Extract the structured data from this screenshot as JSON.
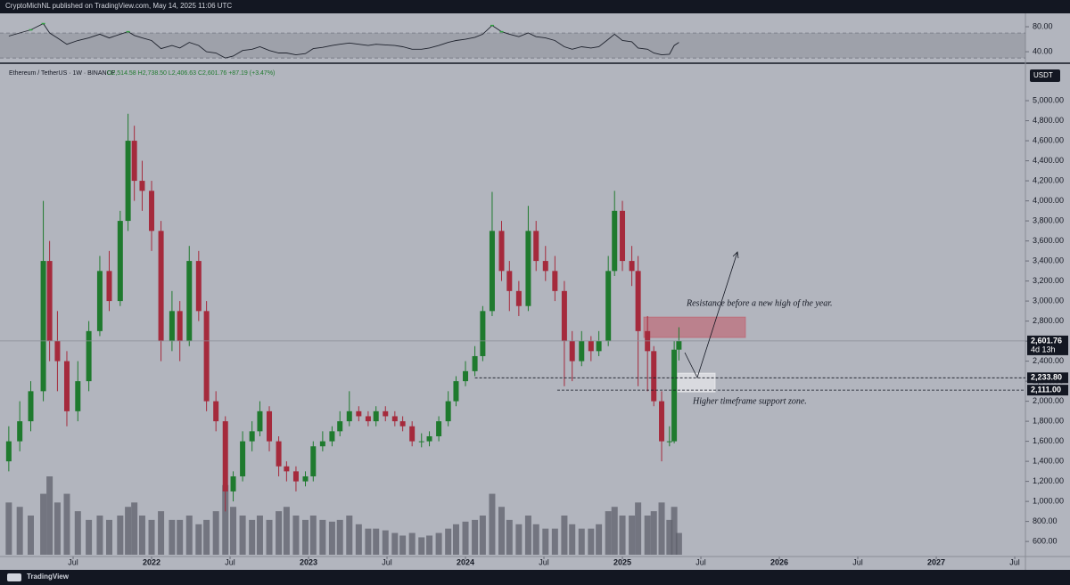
{
  "header": {
    "publisher": "CryptoMichNL published on TradingView.com, May 14, 2025 11:06 UTC",
    "brand": "TradingView"
  },
  "chart_data": {
    "type": "candlestick",
    "legend": {
      "symbol": "Ethereum / TetherUS · 1W · BINANCE",
      "ohlc": "O2,514.58 H2,738.50 L2,406.63 C2,601.76 +87.19 (+3.47%)"
    },
    "currency": "USDT",
    "up_color": "#1f7a2e",
    "down_color": "#a52a3c",
    "volume_color": "#5d606b",
    "xlim": [
      2021.034,
      2027.568
    ],
    "xticks": [
      {
        "value": 2021.5,
        "label": "Jul"
      },
      2022,
      {
        "value": 2022.5,
        "label": "Jul"
      },
      2023,
      {
        "value": 2023.5,
        "label": "Jul"
      },
      2024,
      {
        "value": 2024.5,
        "label": "Jul"
      },
      2025,
      {
        "value": 2025.5,
        "label": "Jul"
      },
      2026,
      {
        "value": 2026.5,
        "label": "Jul"
      },
      2027,
      {
        "value": 2027.5,
        "label": "Jul"
      }
    ],
    "ylim": [
      450,
      5365
    ],
    "yticks": [
      {
        "value": 600,
        "label": "600.00"
      },
      {
        "value": 800,
        "label": "800.00"
      },
      {
        "value": 1000,
        "label": "1,000.00"
      },
      {
        "value": 1200,
        "label": "1,200.00"
      },
      {
        "value": 1400,
        "label": "1,400.00"
      },
      {
        "value": 1600,
        "label": "1,600.00"
      },
      {
        "value": 1800,
        "label": "1,800.00"
      },
      {
        "value": 2000,
        "label": "2,000.00"
      },
      {
        "value": 2200,
        "label": "2,200.00"
      },
      {
        "value": 2400,
        "label": "2,400.00"
      },
      {
        "value": 2600,
        "label": "2,600.00"
      },
      {
        "value": 2800,
        "label": "2,800.00"
      },
      {
        "value": 3000,
        "label": "3,000.00"
      },
      {
        "value": 3200,
        "label": "3,200.00"
      },
      {
        "value": 3400,
        "label": "3,400.00"
      },
      {
        "value": 3600,
        "label": "3,600.00"
      },
      {
        "value": 3800,
        "label": "3,800.00"
      },
      {
        "value": 4000,
        "label": "4,000.00"
      },
      {
        "value": 4200,
        "label": "4,200.00"
      },
      {
        "value": 4400,
        "label": "4,400.00"
      },
      {
        "value": 4600,
        "label": "4,600.00"
      },
      {
        "value": 4800,
        "label": "4,800.00"
      },
      {
        "value": 5000,
        "label": "5,000.00"
      }
    ],
    "candles": {
      "x": [
        2021.09,
        2021.16,
        2021.23,
        2021.31,
        2021.35,
        2021.4,
        2021.46,
        2021.53,
        2021.6,
        2021.67,
        2021.73,
        2021.8,
        2021.85,
        2021.89,
        2021.94,
        2022.0,
        2022.06,
        2022.13,
        2022.18,
        2022.24,
        2022.3,
        2022.35,
        2022.41,
        2022.47,
        2022.52,
        2022.58,
        2022.64,
        2022.69,
        2022.75,
        2022.81,
        2022.86,
        2022.92,
        2022.98,
        2023.03,
        2023.09,
        2023.15,
        2023.2,
        2023.26,
        2023.32,
        2023.38,
        2023.43,
        2023.49,
        2023.55,
        2023.6,
        2023.66,
        2023.72,
        2023.77,
        2023.83,
        2023.89,
        2023.94,
        2024.0,
        2024.06,
        2024.11,
        2024.17,
        2024.23,
        2024.28,
        2024.34,
        2024.4,
        2024.45,
        2024.51,
        2024.57,
        2024.63,
        2024.68,
        2024.74,
        2024.8,
        2024.85,
        2024.91,
        2024.95,
        2025.0,
        2025.06,
        2025.1,
        2025.16,
        2025.2,
        2025.25,
        2025.3,
        2025.33,
        2025.36
      ],
      "open": [
        1400,
        1600,
        1800,
        2100,
        3400,
        2600,
        2400,
        1900,
        2200,
        2700,
        3300,
        3000,
        3800,
        4600,
        4200,
        4100,
        3700,
        2600,
        2900,
        2600,
        3400,
        2900,
        2000,
        1800,
        1100,
        1250,
        1600,
        1700,
        1900,
        1600,
        1350,
        1300,
        1200,
        1250,
        1550,
        1600,
        1700,
        1800,
        1900,
        1850,
        1800,
        1900,
        1850,
        1800,
        1750,
        1600,
        1600,
        1650,
        1800,
        2000,
        2200,
        2300,
        2450,
        2900,
        3700,
        3300,
        3100,
        2950,
        3700,
        3400,
        3300,
        3100,
        2600,
        2400,
        2600,
        2500,
        2600,
        3300,
        3900,
        3400,
        3300,
        2700,
        2500,
        2000,
        1600,
        1600,
        2514.58
      ],
      "high": [
        1750,
        2000,
        2200,
        4000,
        3600,
        2900,
        2500,
        2400,
        2800,
        3450,
        3500,
        3900,
        4870,
        4750,
        4400,
        4200,
        3800,
        3100,
        3000,
        3550,
        3500,
        3000,
        2100,
        1850,
        1300,
        1700,
        1800,
        2000,
        1950,
        1650,
        1400,
        1350,
        1300,
        1600,
        1700,
        1750,
        1900,
        2100,
        1950,
        1900,
        1950,
        1950,
        1900,
        1850,
        1800,
        1680,
        1700,
        1850,
        2100,
        2250,
        2400,
        2550,
        2950,
        4090,
        3800,
        3400,
        3200,
        3950,
        3800,
        3550,
        3450,
        3200,
        2700,
        2700,
        2650,
        2700,
        3450,
        4100,
        4000,
        3550,
        3450,
        2850,
        2550,
        2100,
        1750,
        2600,
        2738.5
      ],
      "low": [
        1300,
        1500,
        1700,
        2000,
        2400,
        2100,
        1750,
        1800,
        2100,
        2650,
        2900,
        2950,
        3700,
        4000,
        3900,
        3500,
        2400,
        2500,
        2400,
        2550,
        2800,
        1900,
        1700,
        900,
        1000,
        1200,
        1500,
        1650,
        1500,
        1250,
        1200,
        1100,
        1150,
        1200,
        1500,
        1550,
        1650,
        1750,
        1800,
        1750,
        1750,
        1800,
        1750,
        1700,
        1550,
        1540,
        1550,
        1600,
        1750,
        1950,
        2150,
        2250,
        2400,
        2850,
        3200,
        2900,
        2850,
        2900,
        3300,
        3200,
        3000,
        2150,
        2200,
        2350,
        2400,
        2450,
        2550,
        3250,
        3300,
        3150,
        2150,
        2100,
        1950,
        1400,
        1550,
        1580,
        2406.63
      ],
      "close": [
        1600,
        1800,
        2100,
        3400,
        2600,
        2400,
        1900,
        2200,
        2700,
        3300,
        3000,
        3800,
        4600,
        4200,
        4100,
        3700,
        2600,
        2900,
        2600,
        3400,
        2900,
        2000,
        1800,
        1100,
        1250,
        1600,
        1700,
        1900,
        1600,
        1350,
        1300,
        1200,
        1250,
        1550,
        1600,
        1700,
        1800,
        1900,
        1850,
        1800,
        1900,
        1850,
        1800,
        1750,
        1600,
        1600,
        1650,
        1800,
        2000,
        2200,
        2300,
        2450,
        2900,
        3700,
        3300,
        3100,
        2950,
        3700,
        3400,
        3300,
        3100,
        2600,
        2400,
        2600,
        2500,
        2600,
        3300,
        3900,
        3400,
        3300,
        2700,
        2500,
        2000,
        1600,
        1600,
        2514.58,
        2601.76
      ],
      "volume": [
        60,
        55,
        45,
        70,
        90,
        60,
        70,
        50,
        40,
        45,
        40,
        45,
        55,
        60,
        45,
        40,
        50,
        40,
        40,
        45,
        35,
        40,
        50,
        80,
        55,
        45,
        40,
        45,
        40,
        50,
        55,
        45,
        40,
        45,
        40,
        38,
        40,
        45,
        35,
        30,
        30,
        28,
        25,
        22,
        25,
        20,
        22,
        25,
        30,
        35,
        38,
        40,
        45,
        70,
        55,
        40,
        35,
        45,
        35,
        30,
        30,
        45,
        35,
        30,
        30,
        35,
        50,
        55,
        45,
        45,
        60,
        45,
        50,
        60,
        40,
        55,
        25
      ]
    },
    "last_price": {
      "value": 2601.76,
      "label": "2,601.76",
      "countdown": "4d 13h"
    },
    "levels": [
      {
        "value": 2233.8,
        "label": "2,233.80",
        "from_x": 2024.06
      },
      {
        "value": 2111.0,
        "label": "2,111.00",
        "from_x": 2024.585
      }
    ],
    "zones": [
      {
        "x0": 2025.136,
        "x1": 2025.784,
        "low": 2636,
        "high": 2840,
        "color": "rgba(196,78,92,0.5)"
      },
      {
        "x0": 2025.352,
        "x1": 2025.591,
        "low": 2093,
        "high": 2280,
        "color": "rgba(255,255,255,0.5)"
      }
    ],
    "annotations": [
      "Resistance before a new high of the year.",
      "Higher timeframe support zone."
    ],
    "rsi": {
      "color": "#1e222d",
      "over_color": "#2e9e3e",
      "band_color": "rgba(120,123,134,0.35)",
      "bands": [
        30,
        70
      ],
      "ylim": [
        23,
        100
      ],
      "yticks": [
        {
          "value": 40,
          "label": "40.00"
        },
        {
          "value": 80,
          "label": "80.00"
        }
      ],
      "values": [
        65,
        70,
        75,
        85,
        70,
        62,
        52,
        58,
        62,
        68,
        62,
        68,
        72,
        66,
        62,
        58,
        45,
        50,
        46,
        55,
        50,
        40,
        38,
        30,
        33,
        42,
        44,
        48,
        42,
        38,
        38,
        35,
        37,
        45,
        47,
        50,
        52,
        54,
        52,
        50,
        52,
        51,
        50,
        48,
        44,
        44,
        46,
        50,
        55,
        58,
        60,
        63,
        68,
        82,
        72,
        68,
        64,
        70,
        64,
        62,
        58,
        48,
        44,
        48,
        46,
        48,
        60,
        68,
        58,
        56,
        46,
        44,
        38,
        35,
        36,
        50,
        55
      ]
    }
  }
}
